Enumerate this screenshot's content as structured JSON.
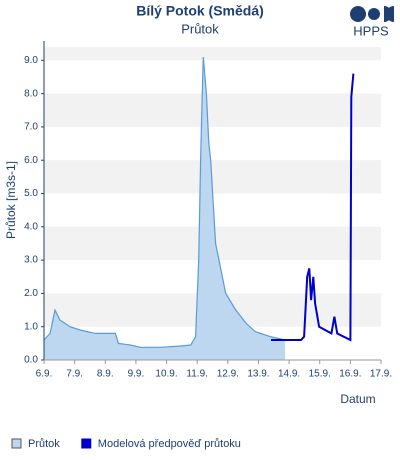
{
  "chart_data": {
    "type": "line",
    "title": "Bílý Potok (Smědá)",
    "subtitle": "Průtok",
    "logo": "HPPS",
    "y_label": "Průtok [m3s-1]",
    "x_label": "Datum",
    "xlim": [
      6,
      17
    ],
    "xticks": [
      {
        "value": 6,
        "label": "6.9."
      },
      {
        "value": 7,
        "label": "7.9."
      },
      {
        "value": 8,
        "label": "8.9."
      },
      {
        "value": 9,
        "label": "9.9."
      },
      {
        "value": 10,
        "label": "10.9."
      },
      {
        "value": 11,
        "label": "11.9."
      },
      {
        "value": 12,
        "label": "12.9."
      },
      {
        "value": 13,
        "label": "13.9."
      },
      {
        "value": 14,
        "label": "14.9."
      },
      {
        "value": 15,
        "label": "15.9."
      },
      {
        "value": 16,
        "label": "16.9."
      },
      {
        "value": 17,
        "label": "17.9."
      }
    ],
    "ylim": [
      0,
      9.4
    ],
    "yticks": [
      {
        "value": 0,
        "label": "0.0"
      },
      {
        "value": 1,
        "label": "1.0"
      },
      {
        "value": 2,
        "label": "2.0"
      },
      {
        "value": 3,
        "label": "3.0"
      },
      {
        "value": 4,
        "label": "4.0"
      },
      {
        "value": 5,
        "label": "5.0"
      },
      {
        "value": 6,
        "label": "6.0"
      },
      {
        "value": 7,
        "label": "7.0"
      },
      {
        "value": 8,
        "label": "8.0"
      },
      {
        "value": 9,
        "label": "9.0"
      }
    ],
    "grid": true,
    "series": [
      {
        "name": "Průtok",
        "color": "#5b9bd5",
        "fill": "#bcd7ef",
        "area": true,
        "x": [
          6.0,
          6.2,
          6.36,
          6.52,
          6.85,
          7.18,
          7.67,
          8.16,
          8.33,
          8.43,
          8.82,
          9.15,
          9.8,
          10.46,
          10.79,
          10.95,
          11.05,
          11.11,
          11.18,
          11.2,
          11.3,
          11.38,
          11.44,
          11.6,
          11.93,
          12.26,
          12.6,
          12.9,
          13.4,
          13.87
        ],
        "values": [
          0.6,
          0.8,
          1.5,
          1.2,
          1.0,
          0.9,
          0.8,
          0.8,
          0.8,
          0.5,
          0.45,
          0.38,
          0.38,
          0.42,
          0.45,
          0.7,
          3.0,
          6.0,
          8.5,
          9.1,
          8.0,
          6.5,
          6.0,
          3.5,
          2.0,
          1.5,
          1.1,
          0.85,
          0.7,
          0.6
        ]
      },
      {
        "name": "Modelová předpověď průtoku",
        "color": "#0000cc",
        "area": false,
        "x": [
          13.41,
          14.39,
          14.49,
          14.59,
          14.66,
          14.72,
          14.79,
          14.85,
          14.98,
          15.38,
          15.48,
          15.57,
          16.0,
          16.03,
          16.1
        ],
        "values": [
          0.6,
          0.6,
          0.7,
          2.5,
          2.75,
          1.8,
          2.5,
          1.7,
          1.0,
          0.8,
          1.3,
          0.8,
          0.6,
          7.9,
          8.6
        ]
      }
    ]
  }
}
